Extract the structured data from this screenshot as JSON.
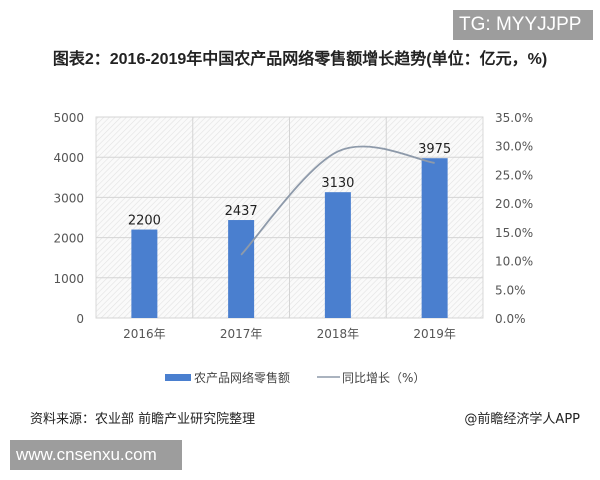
{
  "watermarks": {
    "top_right": "TG: MYYJJPP",
    "bottom_left": "www.cnsenxu.com"
  },
  "chart_data": {
    "type": "bar",
    "title": "图表2：2016-2019年中国农产品网络零售额增长趋势(单位：亿元，%)",
    "categories": [
      "2016年",
      "2017年",
      "2018年",
      "2019年"
    ],
    "series": [
      {
        "name": "农产品网络零售额",
        "type": "bar",
        "axis": "left",
        "color": "#4a7fcf",
        "values": [
          2200,
          2437,
          3130,
          3975
        ]
      },
      {
        "name": "同比增长（%）",
        "type": "line",
        "axis": "right",
        "color": "#8e9aaa",
        "values": [
          null,
          11.0,
          29.0,
          27.0
        ]
      }
    ],
    "y_left": {
      "ticks": [
        "0",
        "1000",
        "2000",
        "3000",
        "4000",
        "5000"
      ],
      "ylim": [
        0,
        5000
      ]
    },
    "y_right": {
      "ticks": [
        "0.0%",
        "5.0%",
        "10.0%",
        "15.0%",
        "20.0%",
        "25.0%",
        "30.0%",
        "35.0%"
      ],
      "ylim": [
        0,
        35
      ]
    },
    "grid": true,
    "legend_position": "bottom"
  },
  "footer": {
    "source": "资料来源：农业部 前瞻产业研究院整理",
    "brand": "@前瞻经济学人APP"
  }
}
